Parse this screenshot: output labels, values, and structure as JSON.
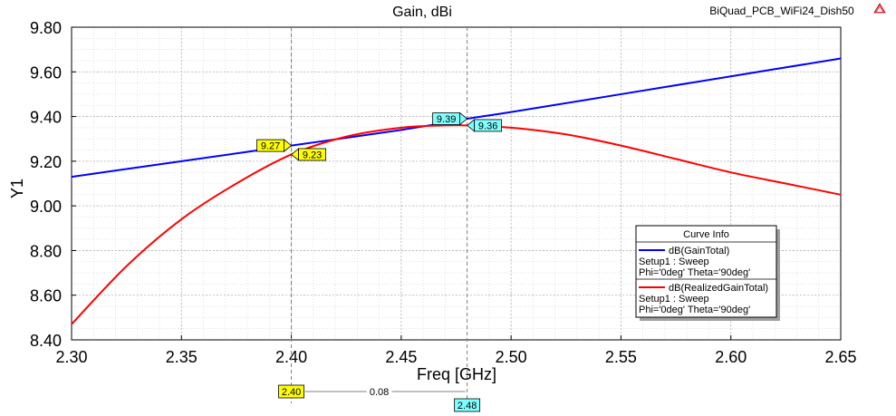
{
  "project_title": "BiQuad_PCB_WiFi24_Dish50",
  "chart_data": {
    "type": "line",
    "title": "Gain, dBi",
    "xlabel": "Freq [GHz]",
    "ylabel": "Y1",
    "xlim": [
      2.3,
      2.65
    ],
    "ylim": [
      8.4,
      9.8
    ],
    "xticks": [
      "2.30",
      "2.35",
      "2.40",
      "2.45",
      "2.50",
      "2.55",
      "2.60",
      "2.65"
    ],
    "yticks": [
      "8.40",
      "8.60",
      "8.80",
      "9.00",
      "9.20",
      "9.40",
      "9.60",
      "9.80"
    ],
    "grid": true,
    "legend_position": "right",
    "series": [
      {
        "name": "dB(GainTotal)",
        "color": "#0000ff",
        "x": [
          2.3,
          2.35,
          2.4,
          2.45,
          2.48,
          2.5,
          2.55,
          2.6,
          2.65
        ],
        "values": [
          9.13,
          9.2,
          9.27,
          9.34,
          9.39,
          9.42,
          9.5,
          9.58,
          9.66
        ]
      },
      {
        "name": "dB(RealizedGainTotal)",
        "color": "#ff0000",
        "x": [
          2.3,
          2.325,
          2.35,
          2.375,
          2.4,
          2.425,
          2.45,
          2.47,
          2.48,
          2.5,
          2.525,
          2.55,
          2.575,
          2.6,
          2.625,
          2.65
        ],
        "values": [
          8.47,
          8.73,
          8.94,
          9.1,
          9.23,
          9.31,
          9.35,
          9.36,
          9.36,
          9.35,
          9.32,
          9.27,
          9.21,
          9.15,
          9.1,
          9.05
        ]
      }
    ],
    "legend": {
      "title": "Curve Info",
      "entries": [
        {
          "name": "dB(GainTotal)",
          "line1": "Setup1 : Sweep",
          "line2": "Phi='0deg' Theta='90deg'",
          "color": "#0000ff"
        },
        {
          "name": "dB(RealizedGainTotal)",
          "line1": "Setup1 : Sweep",
          "line2": "Phi='0deg' Theta='90deg'",
          "color": "#ff0000"
        }
      ]
    },
    "markers": [
      {
        "label": "9.27",
        "x": 2.4,
        "y": 9.27,
        "color": "#ffff00",
        "series": "dB(GainTotal)"
      },
      {
        "label": "9.23",
        "x": 2.4,
        "y": 9.23,
        "color": "#ffff00",
        "series": "dB(RealizedGainTotal)"
      },
      {
        "label": "9.39",
        "x": 2.48,
        "y": 9.39,
        "color": "#80ffff",
        "series": "dB(GainTotal)"
      },
      {
        "label": "9.36",
        "x": 2.48,
        "y": 9.36,
        "color": "#80ffff",
        "series": "dB(RealizedGainTotal)"
      }
    ],
    "x_markers": [
      {
        "label": "2.40",
        "x": 2.4,
        "color": "#ffff00"
      },
      {
        "label": "2.48",
        "x": 2.48,
        "color": "#80ffff"
      }
    ],
    "delta_label": "0.08"
  }
}
